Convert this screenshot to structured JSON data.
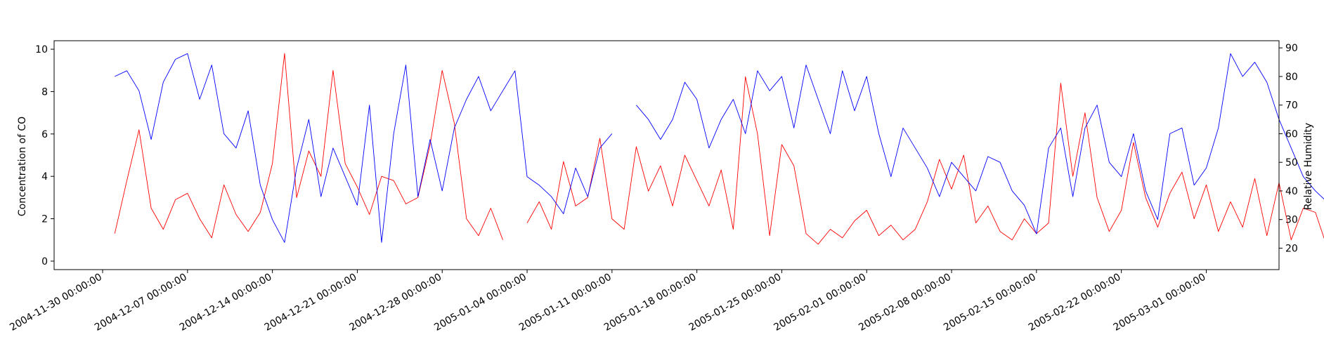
{
  "chart_data": {
    "type": "line",
    "title": "",
    "xlabel": "",
    "ylabel": "Concentration of CO",
    "y2label": "Relative Humidity",
    "grid": false,
    "legend": "none",
    "x_range": [
      "2004-11-26",
      "2005-03-07"
    ],
    "ylim": [
      -0.4,
      10.4
    ],
    "y2lim": [
      12.5,
      92.5
    ],
    "x_ticks": [
      "2004-11-30 00:00:00",
      "2004-12-07 00:00:00",
      "2004-12-14 00:00:00",
      "2004-12-21 00:00:00",
      "2004-12-28 00:00:00",
      "2005-01-04 00:00:00",
      "2005-01-11 00:00:00",
      "2005-01-18 00:00:00",
      "2005-01-25 00:00:00",
      "2005-02-01 00:00:00",
      "2005-02-08 00:00:00",
      "2005-02-15 00:00:00",
      "2005-02-22 00:00:00",
      "2005-03-01 00:00:00"
    ],
    "y_ticks": [
      0,
      2,
      4,
      6,
      8,
      10
    ],
    "y2_ticks": [
      20,
      30,
      40,
      50,
      60,
      70,
      80,
      90
    ],
    "colors": {
      "co": "#ff0000",
      "rh": "#0000ff"
    },
    "series": [
      {
        "axis": "left",
        "color": "#ff0000",
        "points": [
          [
            "2004-12-01",
            1.3
          ],
          [
            "2004-12-02",
            3.8
          ],
          [
            "2004-12-03",
            6.2
          ],
          [
            "2004-12-04",
            2.5
          ],
          [
            "2004-12-05",
            1.5
          ],
          [
            "2004-12-06",
            2.9
          ],
          [
            "2004-12-07",
            3.2
          ],
          [
            "2004-12-08",
            2.0
          ],
          [
            "2004-12-09",
            1.1
          ],
          [
            "2004-12-10",
            3.6
          ],
          [
            "2004-12-11",
            2.2
          ],
          [
            "2004-12-12",
            1.4
          ],
          [
            "2004-12-13",
            2.3
          ],
          [
            "2004-12-14",
            4.6
          ],
          [
            "2004-12-15",
            9.8
          ],
          [
            "2004-12-16",
            3.0
          ],
          [
            "2004-12-17",
            5.2
          ],
          [
            "2004-12-18",
            4.0
          ],
          [
            "2004-12-19",
            9.0
          ],
          [
            "2004-12-20",
            4.6
          ],
          [
            "2004-12-21",
            3.5
          ],
          [
            "2004-12-22",
            2.2
          ],
          [
            "2004-12-23",
            4.0
          ],
          [
            "2004-12-24",
            3.8
          ],
          [
            "2004-12-25",
            2.7
          ],
          [
            "2004-12-26",
            3.0
          ],
          [
            "2004-12-27",
            5.5
          ],
          [
            "2004-12-28",
            9.0
          ],
          [
            "2004-12-29",
            6.5
          ],
          [
            "2004-12-30",
            2.0
          ],
          [
            "2004-12-31",
            1.2
          ],
          [
            "2005-01-01",
            2.5
          ],
          [
            "2005-01-02",
            1.0
          ],
          [
            "2005-01-03",
            null
          ],
          [
            "2005-01-04",
            1.8
          ],
          [
            "2005-01-05",
            2.8
          ],
          [
            "2005-01-06",
            1.5
          ],
          [
            "2005-01-07",
            4.7
          ],
          [
            "2005-01-08",
            2.6
          ],
          [
            "2005-01-09",
            3.0
          ],
          [
            "2005-01-10",
            5.8
          ],
          [
            "2005-01-11",
            2.0
          ],
          [
            "2005-01-12",
            1.5
          ],
          [
            "2005-01-13",
            5.4
          ],
          [
            "2005-01-14",
            3.3
          ],
          [
            "2005-01-15",
            4.5
          ],
          [
            "2005-01-16",
            2.6
          ],
          [
            "2005-01-17",
            5.0
          ],
          [
            "2005-01-18",
            3.8
          ],
          [
            "2005-01-19",
            2.6
          ],
          [
            "2005-01-20",
            4.3
          ],
          [
            "2005-01-21",
            1.5
          ],
          [
            "2005-01-22",
            8.7
          ],
          [
            "2005-01-23",
            6.0
          ],
          [
            "2005-01-24",
            1.2
          ],
          [
            "2005-01-25",
            5.5
          ],
          [
            "2005-01-26",
            4.5
          ],
          [
            "2005-01-27",
            1.3
          ],
          [
            "2005-01-28",
            0.8
          ],
          [
            "2005-01-29",
            1.5
          ],
          [
            "2005-01-30",
            1.1
          ],
          [
            "2005-01-31",
            1.9
          ],
          [
            "2005-02-01",
            2.4
          ],
          [
            "2005-02-02",
            1.2
          ],
          [
            "2005-02-03",
            1.7
          ],
          [
            "2005-02-04",
            1.0
          ],
          [
            "2005-02-05",
            1.5
          ],
          [
            "2005-02-06",
            2.8
          ],
          [
            "2005-02-07",
            4.8
          ],
          [
            "2005-02-08",
            3.4
          ],
          [
            "2005-02-09",
            5.0
          ],
          [
            "2005-02-10",
            1.8
          ],
          [
            "2005-02-11",
            2.6
          ],
          [
            "2005-02-12",
            1.4
          ],
          [
            "2005-02-13",
            1.0
          ],
          [
            "2005-02-14",
            2.0
          ],
          [
            "2005-02-15",
            1.3
          ],
          [
            "2005-02-16",
            1.8
          ],
          [
            "2005-02-17",
            8.4
          ],
          [
            "2005-02-18",
            4.0
          ],
          [
            "2005-02-19",
            7.0
          ],
          [
            "2005-02-20",
            3.0
          ],
          [
            "2005-02-21",
            1.4
          ],
          [
            "2005-02-22",
            2.4
          ],
          [
            "2005-02-23",
            5.6
          ],
          [
            "2005-02-24",
            3.0
          ],
          [
            "2005-02-25",
            1.6
          ],
          [
            "2005-02-26",
            3.2
          ],
          [
            "2005-02-27",
            4.2
          ],
          [
            "2005-02-28",
            2.0
          ],
          [
            "2005-03-01",
            3.6
          ],
          [
            "2005-03-02",
            1.4
          ],
          [
            "2005-03-03",
            2.8
          ],
          [
            "2005-03-04",
            1.6
          ],
          [
            "2005-03-05",
            3.9
          ],
          [
            "2005-03-06",
            1.2
          ],
          [
            "2005-03-07",
            3.7
          ],
          [
            "2005-03-08",
            1.0
          ],
          [
            "2005-03-09",
            2.5
          ],
          [
            "2005-03-10",
            2.3
          ],
          [
            "2005-03-11",
            0.6
          ]
        ]
      },
      {
        "axis": "right",
        "color": "#0000ff",
        "points": [
          [
            "2004-12-01",
            80
          ],
          [
            "2004-12-02",
            82
          ],
          [
            "2004-12-03",
            75
          ],
          [
            "2004-12-04",
            58
          ],
          [
            "2004-12-05",
            78
          ],
          [
            "2004-12-06",
            86
          ],
          [
            "2004-12-07",
            88
          ],
          [
            "2004-12-08",
            72
          ],
          [
            "2004-12-09",
            84
          ],
          [
            "2004-12-10",
            60
          ],
          [
            "2004-12-11",
            55
          ],
          [
            "2004-12-12",
            68
          ],
          [
            "2004-12-13",
            42
          ],
          [
            "2004-12-14",
            30
          ],
          [
            "2004-12-15",
            22
          ],
          [
            "2004-12-16",
            48
          ],
          [
            "2004-12-17",
            65
          ],
          [
            "2004-12-18",
            38
          ],
          [
            "2004-12-19",
            55
          ],
          [
            "2004-12-20",
            45
          ],
          [
            "2004-12-21",
            35
          ],
          [
            "2004-12-22",
            70
          ],
          [
            "2004-12-23",
            22
          ],
          [
            "2004-12-24",
            60
          ],
          [
            "2004-12-25",
            84
          ],
          [
            "2004-12-26",
            38
          ],
          [
            "2004-12-27",
            58
          ],
          [
            "2004-12-28",
            40
          ],
          [
            "2004-12-29",
            62
          ],
          [
            "2004-12-30",
            72
          ],
          [
            "2004-12-31",
            80
          ],
          [
            "2005-01-01",
            68
          ],
          [
            "2005-01-02",
            75
          ],
          [
            "2005-01-03",
            82
          ],
          [
            "2005-01-04",
            45
          ],
          [
            "2005-01-05",
            42
          ],
          [
            "2005-01-06",
            38
          ],
          [
            "2005-01-07",
            32
          ],
          [
            "2005-01-08",
            48
          ],
          [
            "2005-01-09",
            38
          ],
          [
            "2005-01-10",
            55
          ],
          [
            "2005-01-11",
            60
          ],
          [
            "2005-01-12",
            null
          ],
          [
            "2005-01-13",
            70
          ],
          [
            "2005-01-14",
            65
          ],
          [
            "2005-01-15",
            58
          ],
          [
            "2005-01-16",
            65
          ],
          [
            "2005-01-17",
            78
          ],
          [
            "2005-01-18",
            72
          ],
          [
            "2005-01-19",
            55
          ],
          [
            "2005-01-20",
            65
          ],
          [
            "2005-01-21",
            72
          ],
          [
            "2005-01-22",
            60
          ],
          [
            "2005-01-23",
            82
          ],
          [
            "2005-01-24",
            75
          ],
          [
            "2005-01-25",
            80
          ],
          [
            "2005-01-26",
            62
          ],
          [
            "2005-01-27",
            84
          ],
          [
            "2005-01-28",
            72
          ],
          [
            "2005-01-29",
            60
          ],
          [
            "2005-01-30",
            82
          ],
          [
            "2005-01-31",
            68
          ],
          [
            "2005-02-01",
            80
          ],
          [
            "2005-02-02",
            60
          ],
          [
            "2005-02-03",
            45
          ],
          [
            "2005-02-04",
            62
          ],
          [
            "2005-02-05",
            55
          ],
          [
            "2005-02-06",
            48
          ],
          [
            "2005-02-07",
            38
          ],
          [
            "2005-02-08",
            50
          ],
          [
            "2005-02-09",
            45
          ],
          [
            "2005-02-10",
            40
          ],
          [
            "2005-02-11",
            52
          ],
          [
            "2005-02-12",
            50
          ],
          [
            "2005-02-13",
            40
          ],
          [
            "2005-02-14",
            35
          ],
          [
            "2005-02-15",
            25
          ],
          [
            "2005-02-16",
            55
          ],
          [
            "2005-02-17",
            62
          ],
          [
            "2005-02-18",
            38
          ],
          [
            "2005-02-19",
            62
          ],
          [
            "2005-02-20",
            70
          ],
          [
            "2005-02-21",
            50
          ],
          [
            "2005-02-22",
            45
          ],
          [
            "2005-02-23",
            60
          ],
          [
            "2005-02-24",
            40
          ],
          [
            "2005-02-25",
            30
          ],
          [
            "2005-02-26",
            60
          ],
          [
            "2005-02-27",
            62
          ],
          [
            "2005-02-28",
            42
          ],
          [
            "2005-03-01",
            48
          ],
          [
            "2005-03-02",
            62
          ],
          [
            "2005-03-03",
            88
          ],
          [
            "2005-03-04",
            80
          ],
          [
            "2005-03-05",
            85
          ],
          [
            "2005-03-06",
            78
          ],
          [
            "2005-03-07",
            65
          ],
          [
            "2005-03-08",
            55
          ],
          [
            "2005-03-09",
            45
          ],
          [
            "2005-03-10",
            40
          ],
          [
            "2005-03-11",
            36
          ]
        ]
      }
    ]
  }
}
